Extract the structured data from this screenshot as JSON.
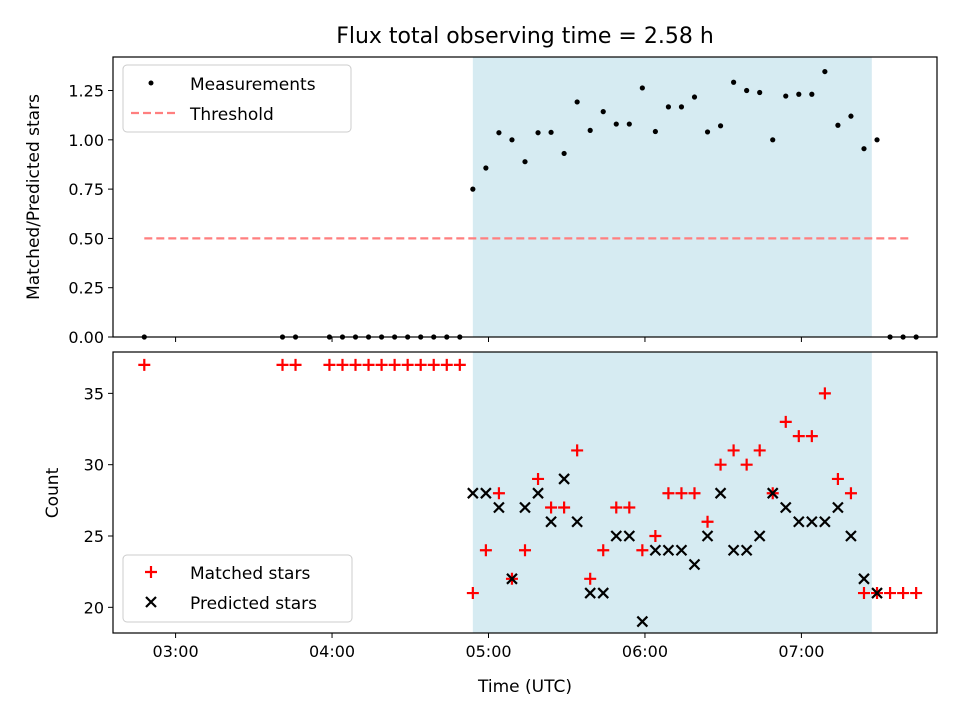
{
  "chart_data": {
    "title": "Flux total observing time = 2.58 h",
    "xlabel": "Time (UTC)",
    "x_ticks": [
      "03:00",
      "04:00",
      "05:00",
      "06:00",
      "07:00"
    ],
    "colors": {
      "measurements": "#000000",
      "threshold": "#ff7f7f",
      "shade": "#add8e6",
      "matched": "#ff0000",
      "predicted": "#000000"
    },
    "shaded_interval": [
      "04:54",
      "07:27"
    ],
    "top": {
      "type": "scatter",
      "ylabel": "Matched/Predicted stars",
      "ylim": [
        0,
        1.42
      ],
      "y_ticks": [
        "0.00",
        "0.25",
        "0.50",
        "0.75",
        "1.00",
        "1.25"
      ],
      "legend": [
        "Measurements",
        "Threshold"
      ],
      "threshold": {
        "value": 0.5,
        "x_range": [
          "02:48",
          "07:42"
        ]
      },
      "measurements": {
        "x": [
          "02:48",
          "03:41",
          "03:46",
          "03:59",
          "04:04",
          "04:09",
          "04:14",
          "04:19",
          "04:24",
          "04:29",
          "04:34",
          "04:39",
          "04:44",
          "04:49",
          "04:54",
          "04:59",
          "05:04",
          "05:09",
          "05:14",
          "05:19",
          "05:24",
          "05:29",
          "05:34",
          "05:39",
          "05:44",
          "05:49",
          "05:54",
          "05:59",
          "06:04",
          "06:09",
          "06:14",
          "06:19",
          "06:24",
          "06:29",
          "06:34",
          "06:39",
          "06:44",
          "06:49",
          "06:54",
          "06:59",
          "07:04",
          "07:09",
          "07:14",
          "07:19",
          "07:24",
          "07:29",
          "07:34",
          "07:39",
          "07:44"
        ],
        "y": [
          0,
          0,
          0,
          0,
          0,
          0,
          0,
          0,
          0,
          0,
          0,
          0,
          0,
          0,
          0.75,
          0.857,
          1.036,
          1.0,
          0.889,
          1.036,
          1.038,
          0.931,
          1.192,
          1.048,
          1.143,
          1.08,
          1.08,
          1.263,
          1.042,
          1.167,
          1.167,
          1.217,
          1.04,
          1.071,
          1.292,
          1.25,
          1.24,
          1.0,
          1.222,
          1.231,
          1.231,
          1.346,
          1.074,
          1.12,
          0.955,
          1.0,
          0,
          0,
          0
        ]
      }
    },
    "bottom": {
      "type": "scatter",
      "ylabel": "Count",
      "ylim": [
        18.2,
        37.9
      ],
      "y_ticks": [
        "20",
        "25",
        "30",
        "35"
      ],
      "legend": [
        "Matched stars",
        "Predicted stars"
      ],
      "series": [
        {
          "name": "Matched stars",
          "marker": "+",
          "x": [
            "02:48",
            "03:41",
            "03:46",
            "03:59",
            "04:04",
            "04:09",
            "04:14",
            "04:19",
            "04:24",
            "04:29",
            "04:34",
            "04:39",
            "04:44",
            "04:49",
            "04:54",
            "04:59",
            "05:04",
            "05:09",
            "05:14",
            "05:19",
            "05:24",
            "05:29",
            "05:34",
            "05:39",
            "05:44",
            "05:49",
            "05:54",
            "05:59",
            "06:04",
            "06:09",
            "06:14",
            "06:19",
            "06:24",
            "06:29",
            "06:34",
            "06:39",
            "06:44",
            "06:49",
            "06:54",
            "06:59",
            "07:04",
            "07:09",
            "07:14",
            "07:19",
            "07:24",
            "07:29",
            "07:34",
            "07:39",
            "07:44"
          ],
          "y": [
            37,
            37,
            37,
            37,
            37,
            37,
            37,
            37,
            37,
            37,
            37,
            37,
            37,
            37,
            21,
            24,
            28,
            22,
            24,
            29,
            27,
            27,
            31,
            22,
            24,
            27,
            27,
            24,
            25,
            28,
            28,
            28,
            26,
            30,
            31,
            30,
            31,
            28,
            33,
            32,
            32,
            35,
            29,
            28,
            21,
            21,
            21,
            21,
            21
          ]
        },
        {
          "name": "Predicted stars",
          "marker": "x",
          "x": [
            "04:54",
            "04:59",
            "05:04",
            "05:09",
            "05:14",
            "05:19",
            "05:24",
            "05:29",
            "05:34",
            "05:39",
            "05:44",
            "05:49",
            "05:54",
            "05:59",
            "06:04",
            "06:09",
            "06:14",
            "06:19",
            "06:24",
            "06:29",
            "06:34",
            "06:39",
            "06:44",
            "06:49",
            "06:54",
            "06:59",
            "07:04",
            "07:09",
            "07:14",
            "07:19",
            "07:24",
            "07:29"
          ],
          "y": [
            28,
            28,
            27,
            22,
            27,
            28,
            26,
            29,
            26,
            21,
            21,
            25,
            25,
            19,
            24,
            24,
            24,
            23,
            25,
            28,
            24,
            24,
            25,
            28,
            27,
            26,
            26,
            26,
            27,
            25,
            22,
            21
          ]
        }
      ]
    }
  }
}
